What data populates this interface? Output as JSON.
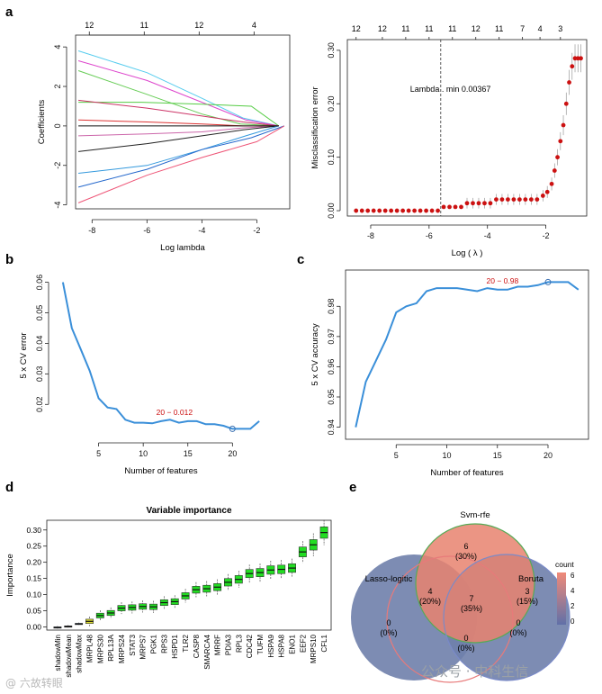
{
  "panel_labels": {
    "a": "a",
    "b": "b",
    "c": "c",
    "d": "d",
    "e": "e"
  },
  "watermarks": {
    "left": "@ 六故转眼",
    "right": "公众号 · 中科生信"
  },
  "colors": {
    "red": "#cc1111",
    "blue": "#3a8fd9",
    "green": "#22dd22",
    "venn_svm": "#e8836f",
    "venn_lasso": "#c57a8a",
    "venn_boruta": "#6f7fab"
  },
  "chart_data": [
    {
      "id": "lasso_coef",
      "type": "line",
      "xlabel": "Log lambda",
      "ylabel": "Coefficients",
      "xticks": [
        -8,
        -6,
        -4,
        -2
      ],
      "yticks": [
        -4,
        -2,
        0,
        2,
        4
      ],
      "top_axis_labels": [
        "12",
        "11",
        "12",
        "4"
      ],
      "xlim": [
        -8.6,
        -0.8
      ],
      "ylim": [
        -4.2,
        4.6
      ],
      "series": [
        {
          "x": [
            -8.5,
            -6,
            -4,
            -2.5,
            -1.2
          ],
          "y": [
            3.8,
            2.7,
            1.4,
            0.4,
            0
          ]
        },
        {
          "x": [
            -8.5,
            -6,
            -4,
            -2.4,
            -1.2
          ],
          "y": [
            3.3,
            2.3,
            1.2,
            0.3,
            0
          ]
        },
        {
          "x": [
            -8.5,
            -6,
            -4,
            -2.6,
            -1.2
          ],
          "y": [
            2.8,
            1.6,
            0.6,
            0.1,
            0
          ]
        },
        {
          "x": [
            -8.5,
            -6.2,
            -4,
            -2.2,
            -1.2
          ],
          "y": [
            1.2,
            1.2,
            1.1,
            1.0,
            0
          ]
        },
        {
          "x": [
            -8.5,
            -6,
            -4,
            -2.5,
            -1.2
          ],
          "y": [
            1.3,
            0.9,
            0.5,
            0.2,
            0
          ]
        },
        {
          "x": [
            -8.5,
            -6,
            -4,
            -2.5,
            -1.2
          ],
          "y": [
            0.3,
            0.2,
            0.1,
            0,
            0
          ]
        },
        {
          "x": [
            -8.5,
            -6,
            -4,
            -2.5,
            -1.2
          ],
          "y": [
            -0.5,
            -0.4,
            -0.3,
            -0.1,
            0
          ]
        },
        {
          "x": [
            -8.5,
            -6,
            -4,
            -2.5,
            -1.2
          ],
          "y": [
            -1.3,
            -0.9,
            -0.5,
            -0.2,
            0
          ]
        },
        {
          "x": [
            -8.5,
            -6,
            -4,
            -2.4,
            -1.2
          ],
          "y": [
            -2.4,
            -2.0,
            -1.2,
            -0.5,
            0
          ]
        },
        {
          "x": [
            -8.5,
            -6,
            -4,
            -2.2,
            -1.0
          ],
          "y": [
            -3.1,
            -2.2,
            -1.2,
            -0.6,
            0
          ]
        },
        {
          "x": [
            -8.5,
            -6,
            -4,
            -2.0,
            -1.0
          ],
          "y": [
            -3.9,
            -2.5,
            -1.6,
            -0.8,
            0
          ]
        },
        {
          "x": [
            -8.5,
            -6,
            -4,
            -2.0,
            -1.2
          ],
          "y": [
            0,
            0,
            0,
            0,
            0
          ]
        }
      ]
    },
    {
      "id": "lasso_cv",
      "type": "scatter",
      "xlabel": "Log ( λ )",
      "ylabel": "Misclassification error",
      "xticks": [
        -8,
        -6,
        -4,
        -2
      ],
      "yticks": [
        0.0,
        0.1,
        0.2,
        0.3
      ],
      "top_axis_labels": [
        "12",
        "12",
        "11",
        "11",
        "11",
        "12",
        "11",
        "7",
        "4",
        "3"
      ],
      "xlim": [
        -8.8,
        -0.6
      ],
      "ylim": [
        -0.01,
        0.32
      ],
      "annotation": "Lambda . min 0.00367",
      "vline_x": -5.6,
      "points": [
        [
          -8.5,
          0
        ],
        [
          -8.3,
          0
        ],
        [
          -8.1,
          0
        ],
        [
          -7.9,
          0
        ],
        [
          -7.7,
          0
        ],
        [
          -7.5,
          0
        ],
        [
          -7.3,
          0
        ],
        [
          -7.1,
          0
        ],
        [
          -6.9,
          0
        ],
        [
          -6.7,
          0
        ],
        [
          -6.5,
          0
        ],
        [
          -6.3,
          0
        ],
        [
          -6.1,
          0
        ],
        [
          -5.9,
          0
        ],
        [
          -5.7,
          0
        ],
        [
          -5.5,
          0.007
        ],
        [
          -5.3,
          0.007
        ],
        [
          -5.1,
          0.007
        ],
        [
          -4.9,
          0.007
        ],
        [
          -4.7,
          0.014
        ],
        [
          -4.5,
          0.014
        ],
        [
          -4.3,
          0.014
        ],
        [
          -4.1,
          0.014
        ],
        [
          -3.9,
          0.014
        ],
        [
          -3.7,
          0.021
        ],
        [
          -3.5,
          0.021
        ],
        [
          -3.3,
          0.021
        ],
        [
          -3.1,
          0.021
        ],
        [
          -2.9,
          0.021
        ],
        [
          -2.7,
          0.021
        ],
        [
          -2.5,
          0.021
        ],
        [
          -2.3,
          0.021
        ],
        [
          -2.1,
          0.028
        ],
        [
          -1.95,
          0.035
        ],
        [
          -1.8,
          0.05
        ],
        [
          -1.7,
          0.075
        ],
        [
          -1.6,
          0.1
        ],
        [
          -1.5,
          0.13
        ],
        [
          -1.4,
          0.16
        ],
        [
          -1.3,
          0.2
        ],
        [
          -1.2,
          0.24
        ],
        [
          -1.1,
          0.27
        ],
        [
          -1.0,
          0.285
        ],
        [
          -0.9,
          0.285
        ],
        [
          -0.8,
          0.285
        ]
      ]
    },
    {
      "id": "svm_error",
      "type": "line",
      "xlabel": "Number of features",
      "ylabel": "5 x CV error",
      "xticks": [
        5,
        10,
        15,
        20
      ],
      "yticks": [
        0.02,
        0.03,
        0.04,
        0.05,
        0.06
      ],
      "xlim": [
        0,
        24
      ],
      "ylim": [
        0.008,
        0.064
      ],
      "annotation": "20 − 0.012",
      "x": [
        1,
        2,
        3,
        4,
        5,
        6,
        7,
        8,
        9,
        10,
        11,
        12,
        13,
        14,
        15,
        16,
        17,
        18,
        19,
        20,
        21,
        22,
        23
      ],
      "y": [
        0.06,
        0.045,
        0.038,
        0.031,
        0.022,
        0.019,
        0.0185,
        0.015,
        0.014,
        0.014,
        0.0138,
        0.0145,
        0.015,
        0.014,
        0.0145,
        0.0145,
        0.0135,
        0.0135,
        0.013,
        0.012,
        0.012,
        0.012,
        0.0145
      ]
    },
    {
      "id": "svm_accuracy",
      "type": "line",
      "xlabel": "Number of features",
      "ylabel": "5 x CV accuracy",
      "xticks": [
        5,
        10,
        15,
        20
      ],
      "yticks": [
        0.94,
        0.95,
        0.96,
        0.97,
        0.98
      ],
      "xlim": [
        0,
        24
      ],
      "ylim": [
        0.936,
        0.992
      ],
      "annotation": "20 − 0.98",
      "x": [
        1,
        2,
        3,
        4,
        5,
        6,
        7,
        8,
        9,
        10,
        11,
        12,
        13,
        14,
        15,
        16,
        17,
        18,
        19,
        20,
        21,
        22,
        23
      ],
      "y": [
        0.94,
        0.955,
        0.962,
        0.969,
        0.978,
        0.98,
        0.981,
        0.985,
        0.986,
        0.986,
        0.986,
        0.9855,
        0.985,
        0.986,
        0.9855,
        0.9855,
        0.9865,
        0.9865,
        0.987,
        0.988,
        0.988,
        0.988,
        0.9855
      ]
    },
    {
      "id": "boruta",
      "type": "box",
      "title": "Variable importance",
      "ylabel": "Importance",
      "yticks": [
        0.0,
        0.05,
        0.1,
        0.15,
        0.2,
        0.25,
        0.3
      ],
      "ylim": [
        -0.01,
        0.33
      ],
      "categories": [
        "shadowMin",
        "shadowMean",
        "shadowMax",
        "MRPL48",
        "MRPS30",
        "RPL13A",
        "MRPS24",
        "STAT3",
        "MRPS7",
        "PGK1",
        "RPS3",
        "HSPD1",
        "TLR2",
        "CASP8",
        "SMARCA4",
        "MRRF",
        "PDIA3",
        "RPL3",
        "CDC42",
        "TUFM",
        "HSPA9",
        "HSPA8",
        "ENO1",
        "EEF2",
        "MRPS10",
        "CFL1"
      ],
      "medians": [
        -0.002,
        0.001,
        0.009,
        0.017,
        0.035,
        0.043,
        0.058,
        0.06,
        0.063,
        0.062,
        0.075,
        0.078,
        0.096,
        0.115,
        0.118,
        0.123,
        0.138,
        0.147,
        0.165,
        0.168,
        0.176,
        0.178,
        0.182,
        0.232,
        0.254,
        0.292
      ],
      "kinds": [
        "shadow",
        "shadow",
        "shadow",
        "tentative",
        "confirmed",
        "confirmed",
        "confirmed",
        "confirmed",
        "confirmed",
        "confirmed",
        "confirmed",
        "confirmed",
        "confirmed",
        "confirmed",
        "confirmed",
        "confirmed",
        "confirmed",
        "confirmed",
        "confirmed",
        "confirmed",
        "confirmed",
        "confirmed",
        "confirmed",
        "confirmed",
        "confirmed",
        "confirmed"
      ]
    },
    {
      "id": "venn",
      "type": "venn",
      "sets": [
        "Svm-rfe",
        "Lasso-logitic",
        "Boruta"
      ],
      "regions": [
        {
          "count": "6",
          "pct": "(30%)"
        },
        {
          "count": "4",
          "pct": "(20%)"
        },
        {
          "count": "3",
          "pct": "(15%)"
        },
        {
          "count": "7",
          "pct": "(35%)"
        },
        {
          "count": "0",
          "pct": "(0%)"
        },
        {
          "count": "0",
          "pct": "(0%)"
        },
        {
          "count": "0",
          "pct": "(0%)"
        }
      ],
      "legend_title": "count",
      "legend_ticks": [
        "6",
        "4",
        "2",
        "0"
      ]
    }
  ]
}
